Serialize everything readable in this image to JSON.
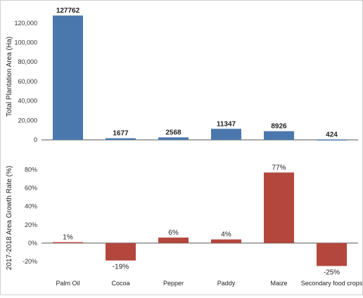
{
  "chart_data": [
    {
      "type": "bar",
      "categories": [
        "Palm Oil",
        "Cocoa",
        "Pepper",
        "Paddy",
        "Maize",
        "Secondary food crops"
      ],
      "values": [
        127762,
        1677,
        2568,
        11347,
        8926,
        424
      ],
      "data_labels": [
        "127762",
        "1677",
        "2568",
        "11347",
        "8926",
        "424"
      ],
      "ylabel": "Total Plantation Area (Ha)",
      "ylim": [
        0,
        130000
      ],
      "yticks": [
        0,
        20000,
        40000,
        60000,
        80000,
        100000,
        120000
      ],
      "ytick_labels": [
        "0",
        "20,000",
        "40,000",
        "60,000",
        "80,000",
        "100,000",
        "120,000"
      ],
      "color": "#4a78ad",
      "grid": false
    },
    {
      "type": "bar",
      "categories": [
        "Palm Oil",
        "Cocoa",
        "Pepper",
        "Paddy",
        "Maize",
        "Secondary food crops"
      ],
      "values": [
        1,
        -19,
        6,
        4,
        77,
        -25
      ],
      "data_labels": [
        "1%",
        "-19%",
        "6%",
        "4%",
        "77%",
        "-25%"
      ],
      "ylabel": "2017-2018 Area Growth Rate (%)",
      "ylim": [
        -30,
        85
      ],
      "yticks": [
        -20,
        0,
        20,
        40,
        60,
        80
      ],
      "ytick_labels": [
        "-20%",
        "0%",
        "20%",
        "40%",
        "60%",
        "80%"
      ],
      "color": "#b3473d",
      "grid": false
    }
  ]
}
